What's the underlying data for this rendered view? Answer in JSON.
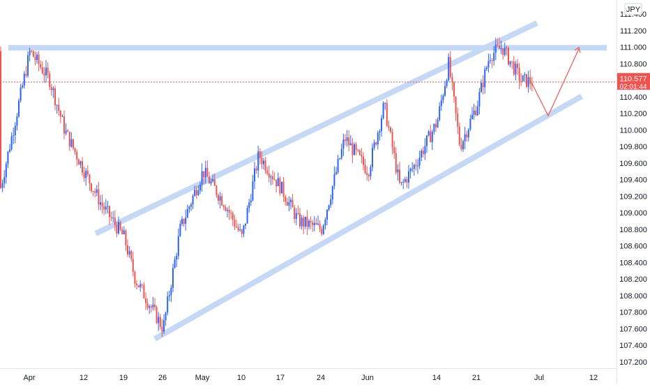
{
  "chart_data": {
    "type": "candlestick",
    "currency": "JPY",
    "ylim": [
      107.1,
      111.5
    ],
    "y_ticks": [
      "107.200",
      "107.400",
      "107.600",
      "107.800",
      "108.000",
      "108.200",
      "108.400",
      "108.600",
      "108.800",
      "109.000",
      "109.200",
      "109.400",
      "109.600",
      "109.800",
      "110.000",
      "110.200",
      "110.400",
      "110.600",
      "110.800",
      "111.000",
      "111.200",
      "111.400"
    ],
    "x_ticks": [
      "Apr",
      "12",
      "19",
      "26",
      "May",
      "10",
      "17",
      "24",
      "Jun",
      "14",
      "21",
      "Jul",
      "12"
    ],
    "price_label": "110.577",
    "countdown": "02:01:44",
    "current_price": 110.577,
    "colors": {
      "up": "#2962ff",
      "down": "#ef5350",
      "channel": "#c5d8f5",
      "price": "#ef5350",
      "grid": "#e0e3eb",
      "text": "#131722"
    },
    "key_points": [
      {
        "date": "Apr 1",
        "price": 110.95
      },
      {
        "date": "Apr 5",
        "price": 110.6
      },
      {
        "date": "Apr 8",
        "price": 110.0
      },
      {
        "date": "Apr 12",
        "price": 109.5
      },
      {
        "date": "Apr 15",
        "price": 109.1
      },
      {
        "date": "Apr 19",
        "price": 108.7
      },
      {
        "date": "Apr 21",
        "price": 108.2
      },
      {
        "date": "Apr 26",
        "price": 107.6
      },
      {
        "date": "Apr 29",
        "price": 108.8
      },
      {
        "date": "May 3",
        "price": 109.5
      },
      {
        "date": "May 7",
        "price": 109.1
      },
      {
        "date": "May 10",
        "price": 108.7
      },
      {
        "date": "May 13",
        "price": 109.7
      },
      {
        "date": "May 17",
        "price": 109.3
      },
      {
        "date": "May 20",
        "price": 108.9
      },
      {
        "date": "May 24",
        "price": 108.8
      },
      {
        "date": "May 28",
        "price": 109.9
      },
      {
        "date": "Jun 1",
        "price": 109.5
      },
      {
        "date": "Jun 4",
        "price": 110.3
      },
      {
        "date": "Jun 7",
        "price": 109.3
      },
      {
        "date": "Jun 10",
        "price": 109.6
      },
      {
        "date": "Jun 14",
        "price": 110.1
      },
      {
        "date": "Jun 16",
        "price": 110.8
      },
      {
        "date": "Jun 18",
        "price": 109.8
      },
      {
        "date": "Jun 21",
        "price": 110.3
      },
      {
        "date": "Jun 23",
        "price": 110.9
      },
      {
        "date": "Jun 25",
        "price": 111.0
      },
      {
        "date": "Jun 28",
        "price": 110.6
      },
      {
        "date": "Jun 30",
        "price": 110.58
      }
    ]
  }
}
